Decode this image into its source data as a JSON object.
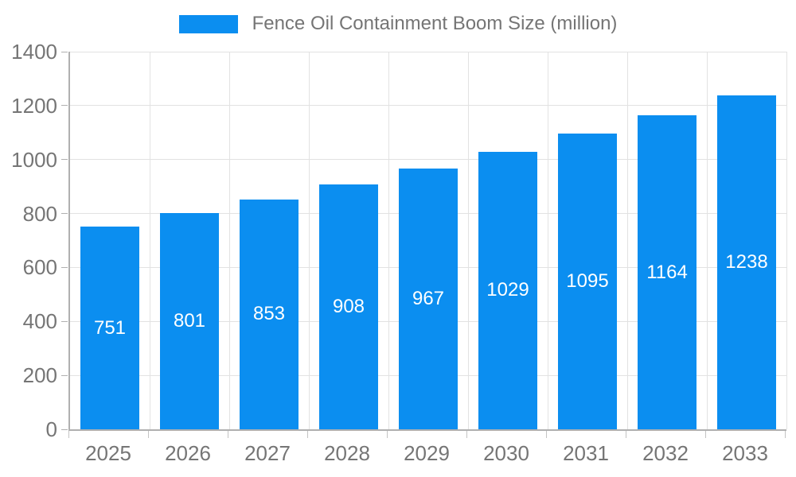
{
  "chart_data": {
    "type": "bar",
    "title": "Fence Oil Containment Boom Size (million)",
    "series": [
      {
        "name": "Fence Oil Containment Boom Size (million)",
        "values": [
          751,
          801,
          853,
          908,
          967,
          1029,
          1095,
          1164,
          1238
        ]
      }
    ],
    "categories": [
      "2025",
      "2026",
      "2027",
      "2028",
      "2029",
      "2030",
      "2031",
      "2032",
      "2033"
    ],
    "xlabel": "",
    "ylabel": "",
    "ylim": [
      0,
      1400
    ],
    "ytick_step": 200,
    "yticks": [
      0,
      200,
      400,
      600,
      800,
      1000,
      1200,
      1400
    ],
    "grid": true,
    "legend_position": "top-center",
    "value_labels": "inside-center",
    "colors": {
      "bar": "#0b8ef0",
      "value_label_text": "#ffffff",
      "axis_text": "#757575",
      "gridline": "#e2e2e2",
      "axis_line": "#b0b0b0",
      "background": "#ffffff"
    }
  }
}
